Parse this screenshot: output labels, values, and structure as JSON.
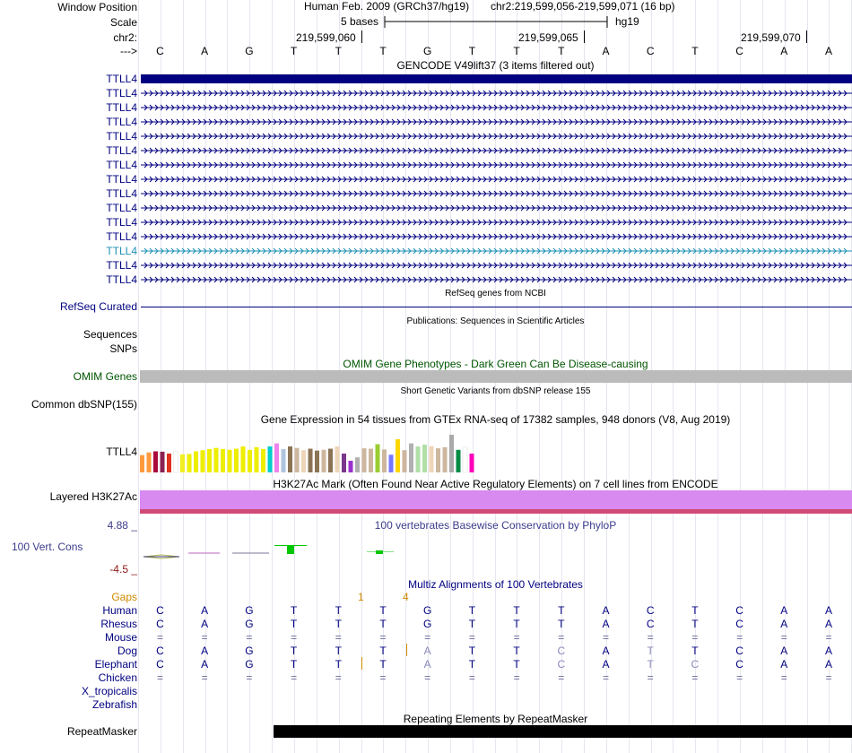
{
  "colors": {
    "navy": "#000080",
    "highlight_gene": "#1e8fb4",
    "omim_green": "#005500",
    "phylop": "#3c3c8c",
    "phylop_min": "#8b1a1a",
    "gaps": "#d08a00",
    "chain_gray": "#bbbbbb",
    "h3k27ac": "#d88af0",
    "h3k27ac_base": "#d24a78"
  },
  "header": {
    "window_position_label": "Window Position",
    "assembly_text": "Human Feb. 2009 (GRCh37/hg19)",
    "position_text": "chr2:219,599,056-219,599,071 (16 bp)",
    "scale_label": "Scale",
    "scale_text": "5 bases",
    "scale_db": "hg19",
    "chrom_label": "chr2:",
    "strand_label": "--->",
    "coord_ticks": [
      "219,599,060",
      "219,599,065",
      "219,599,070"
    ]
  },
  "sequence": [
    "C",
    "A",
    "G",
    "T",
    "T",
    "T",
    "G",
    "T",
    "T",
    "T",
    "A",
    "C",
    "T",
    "C",
    "A",
    "A"
  ],
  "tracks": {
    "gencode": {
      "title": "GENCODE V49lift37 (3 items filtered out)",
      "genes": [
        "TTLL4",
        "TTLL4",
        "TTLL4",
        "TTLL4",
        "TTLL4",
        "TTLL4",
        "TTLL4",
        "TTLL4",
        "TTLL4",
        "TTLL4",
        "TTLL4",
        "TTLL4",
        "TTLL4",
        "TTLL4",
        "TTLL4"
      ],
      "highlighted_index": 12
    },
    "refseq": {
      "title": "RefSeq genes from NCBI",
      "label": "RefSeq Curated"
    },
    "publications": {
      "title": "Publications: Sequences in Scientific Articles",
      "labels": [
        "Sequences",
        "SNPs"
      ]
    },
    "omim": {
      "title": "OMIM Gene Phenotypes - Dark Green Can Be Disease-causing",
      "label": "OMIM Genes"
    },
    "dbsnp": {
      "title": "Short Genetic Variants from dbSNP release 155",
      "label": "Common dbSNP(155)"
    },
    "gtex": {
      "title": "Gene Expression in 54 tissues from GTEx RNA-seq of 17382 samples, 948 donors (V8, Aug 2019)",
      "label": "TTLL4",
      "bars": [
        {
          "v": 0.46,
          "c": "#ff9a3c"
        },
        {
          "v": 0.53,
          "c": "#ff9a3c"
        },
        {
          "v": 0.56,
          "c": "#aa0a3c"
        },
        {
          "v": 0.55,
          "c": "#8b2252"
        },
        {
          "v": 0.5,
          "c": "#e0321e"
        },
        {
          "v": 0.56,
          "c": "#ffffff"
        },
        {
          "v": 0.48,
          "c": "#f0ee1e"
        },
        {
          "v": 0.49,
          "c": "#eeee00"
        },
        {
          "v": 0.56,
          "c": "#eeee00"
        },
        {
          "v": 0.59,
          "c": "#eeee00"
        },
        {
          "v": 0.62,
          "c": "#eeee00"
        },
        {
          "v": 0.65,
          "c": "#eeee00"
        },
        {
          "v": 0.62,
          "c": "#eeee00"
        },
        {
          "v": 0.6,
          "c": "#eeee00"
        },
        {
          "v": 0.63,
          "c": "#eeee00"
        },
        {
          "v": 0.69,
          "c": "#eeee00"
        },
        {
          "v": 0.6,
          "c": "#eeee00"
        },
        {
          "v": 0.67,
          "c": "#eeee00"
        },
        {
          "v": 0.62,
          "c": "#eeee00"
        },
        {
          "v": 0.69,
          "c": "#00cdcd"
        },
        {
          "v": 0.77,
          "c": "#ee82ee"
        },
        {
          "v": 0.62,
          "c": "#b0c4de"
        },
        {
          "v": 0.69,
          "c": "#8b7355"
        },
        {
          "v": 0.65,
          "c": "#cdb79e"
        },
        {
          "v": 0.59,
          "c": "#eed5b7"
        },
        {
          "v": 0.63,
          "c": "#8b7355"
        },
        {
          "v": 0.58,
          "c": "#8b7355"
        },
        {
          "v": 0.6,
          "c": "#cdb79e"
        },
        {
          "v": 0.63,
          "c": "#8b7355"
        },
        {
          "v": 0.69,
          "c": "#eed5b7"
        },
        {
          "v": 0.5,
          "c": "#7a378b"
        },
        {
          "v": 0.31,
          "c": "#9932cc"
        },
        {
          "v": 0.4,
          "c": "#b0b0b0"
        },
        {
          "v": 0.64,
          "c": "#cdb79e"
        },
        {
          "v": 0.63,
          "c": "#cdb79e"
        },
        {
          "v": 0.75,
          "c": "#9acd32"
        },
        {
          "v": 0.61,
          "c": "#cdb79e"
        },
        {
          "v": 0.47,
          "c": "#7777ff"
        },
        {
          "v": 0.88,
          "c": "#ffd700"
        },
        {
          "v": 0.59,
          "c": "#cdb79e"
        },
        {
          "v": 0.77,
          "c": "#b0b0b0"
        },
        {
          "v": 0.69,
          "c": "#b0e0a8"
        },
        {
          "v": 0.74,
          "c": "#b0e0a8"
        },
        {
          "v": 0.7,
          "c": "#eed5b7"
        },
        {
          "v": 0.64,
          "c": "#cdb79e"
        },
        {
          "v": 0.67,
          "c": "#cdb79e"
        },
        {
          "v": 1.0,
          "c": "#aaaaaa"
        },
        {
          "v": 0.6,
          "c": "#008b45"
        },
        {
          "v": 0.67,
          "c": "#ffffff"
        },
        {
          "v": 0.5,
          "c": "#ff00bb"
        }
      ]
    },
    "h3k27ac": {
      "title": "H3K27Ac Mark (Often Found Near Active Regulatory Elements) on 7 cell lines from ENCODE",
      "label": "Layered H3K27Ac"
    },
    "phylop": {
      "title": "100 vertebrates Basewise Conservation by PhyloP",
      "label": "100 Vert. Cons",
      "max_label": "4.88 _",
      "min_label": "-4.5 _"
    },
    "multiz": {
      "title": "Multiz Alignments of 100 Vertebrates",
      "gaps_label": "Gaps",
      "gap_counts": [
        "1",
        "4"
      ],
      "species": [
        {
          "name": "Human",
          "seq": [
            "C",
            "A",
            "G",
            "T",
            "T",
            "T",
            "G",
            "T",
            "T",
            "T",
            "A",
            "C",
            "T",
            "C",
            "A",
            "A"
          ]
        },
        {
          "name": "Rhesus",
          "seq": [
            "C",
            "A",
            "G",
            "T",
            "T",
            "T",
            "G",
            "T",
            "T",
            "T",
            "A",
            "C",
            "T",
            "C",
            "A",
            "A"
          ]
        },
        {
          "name": "Mouse",
          "seq": [
            "=",
            "=",
            "=",
            "=",
            "=",
            "=",
            "=",
            "=",
            "=",
            "=",
            "=",
            "=",
            "=",
            "=",
            "=",
            "="
          ]
        },
        {
          "name": "Dog",
          "seq": [
            "C",
            "A",
            "G",
            "T",
            "T",
            "T",
            "A",
            "T",
            "T",
            "C",
            "A",
            "T",
            "T",
            "C",
            "A",
            "A"
          ]
        },
        {
          "name": "Elephant",
          "seq": [
            "C",
            "A",
            "G",
            "T",
            "T",
            "T",
            "A",
            "T",
            "T",
            "C",
            "A",
            "T",
            "C",
            "C",
            "A",
            "A"
          ]
        },
        {
          "name": "Chicken",
          "seq": [
            "=",
            "=",
            "=",
            "=",
            "=",
            "=",
            "=",
            "=",
            "=",
            "=",
            "=",
            "=",
            "=",
            "=",
            "=",
            "="
          ]
        },
        {
          "name": "X_tropicalis",
          "seq": []
        },
        {
          "name": "Zebrafish",
          "seq": []
        }
      ]
    },
    "repeatmasker": {
      "title": "Repeating Elements by RepeatMasker",
      "label": "RepeatMasker"
    }
  }
}
